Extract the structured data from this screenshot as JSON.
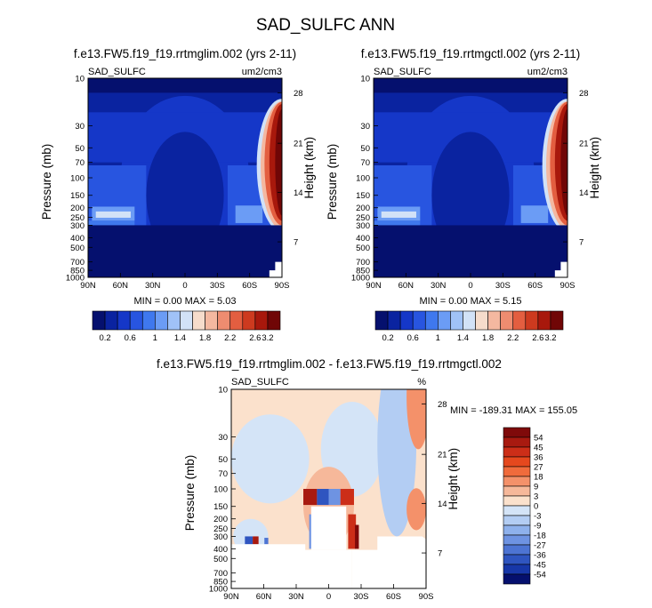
{
  "figure": {
    "main_title": "SAD_SULFC ANN"
  },
  "panels": [
    {
      "id": "a",
      "title": "f.e13.FW5.f19_f19.rrtmglim.002 (yrs 2-11)",
      "left_label": "SAD_SULFC",
      "right_label": "um2/cm3",
      "stats_text": "MIN =    0.00   MAX =    5.03",
      "ylabel": "Pressure (mb)",
      "ylabel_right": "Height (km)"
    },
    {
      "id": "b",
      "title": "f.e13.FW5.f19_f19.rrtmgctl.002 (yrs 2-11)",
      "left_label": "SAD_SULFC",
      "right_label": "um2/cm3",
      "stats_text": "MIN =    0.00   MAX =    5.15",
      "ylabel": "Pressure (mb)",
      "ylabel_right": "Height (km)"
    },
    {
      "id": "c",
      "title": "f.e13.FW5.f19_f19.rrtmglim.002 - f.e13.FW5.f19_f19.rrtmgctl.002",
      "left_label": "SAD_SULFC",
      "right_label": "%",
      "stats_text": "MIN = -189.31    MAX = 155.05",
      "ylabel": "Pressure (mb)",
      "ylabel_right": "Height (km)"
    }
  ],
  "chart_data": {
    "type": "heatmap",
    "x_ticks": [
      "90N",
      "60N",
      "30N",
      "0",
      "30S",
      "60S",
      "90S"
    ],
    "x_values": [
      90,
      60,
      30,
      0,
      -30,
      -60,
      -90
    ],
    "y_ticks_pressure": [
      "10",
      "30",
      "50",
      "70",
      "100",
      "150",
      "200",
      "250",
      "300",
      "400",
      "500",
      "700",
      "850",
      "1000"
    ],
    "y_values_pressure": [
      10,
      30,
      50,
      70,
      100,
      150,
      200,
      250,
      300,
      400,
      500,
      700,
      850,
      1000
    ],
    "y_ticks_height_km": [
      "28",
      "21",
      "14",
      "7"
    ],
    "y_values_height_km": [
      28,
      21,
      14,
      7
    ],
    "ylim_pressure": [
      1000,
      10
    ],
    "xlim_lat": [
      90,
      -90
    ],
    "abs_colorbar": {
      "labels": [
        "0.2",
        "0.6",
        "1",
        "1.4",
        "1.8",
        "2.2",
        "2.6",
        "3.2"
      ],
      "colors": [
        "#05106e",
        "#0a23a0",
        "#1537c8",
        "#2855e0",
        "#3f78ee",
        "#6b9cf5",
        "#a0c2f7",
        "#d2e2f7",
        "#f6dccb",
        "#f4b8a0",
        "#ee8c70",
        "#e35e40",
        "#cd3a1f",
        "#a8180c",
        "#700606"
      ]
    },
    "diff_colorbar": {
      "labels": [
        "54",
        "45",
        "36",
        "27",
        "18",
        "9",
        "3",
        "0",
        "-3",
        "-9",
        "-18",
        "-27",
        "-36",
        "-45",
        "-54"
      ],
      "colors": [
        "#7f0a0a",
        "#a81a10",
        "#cc2e18",
        "#e5481e",
        "#f06b3c",
        "#f4916a",
        "#f6b89a",
        "#fbe1cc",
        "#d4e4f7",
        "#b3cdf3",
        "#8eb1ec",
        "#6e93e2",
        "#4d74d3",
        "#2f55c0",
        "#1737a8",
        "#05106e"
      ]
    },
    "legend_position": "below / right"
  }
}
